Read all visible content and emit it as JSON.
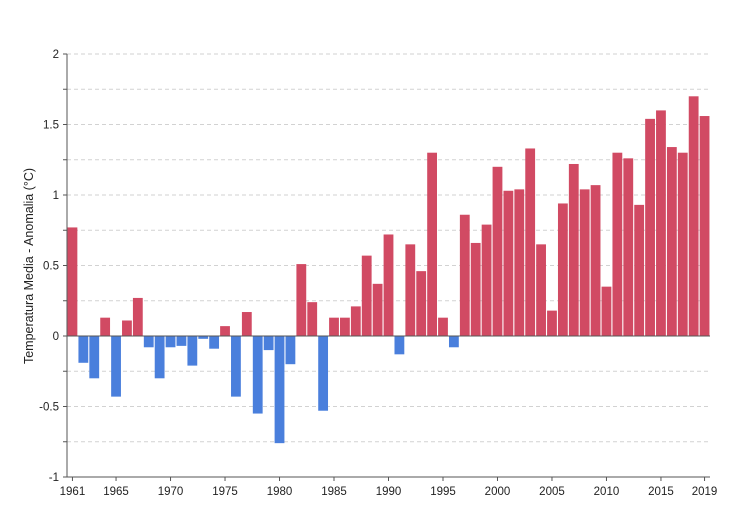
{
  "chart_data": {
    "type": "bar",
    "title": "",
    "xlabel": "",
    "ylabel": "Temperatura Media - Anomalia (°C)",
    "ylim": [
      -1,
      2
    ],
    "grid": "horizontal dashed",
    "legend": "none",
    "colors": {
      "positive": "#d14a63",
      "negative": "#4a7fdc"
    },
    "y_ticks": [
      {
        "value": 2,
        "label": "2"
      },
      {
        "value": 1.5,
        "label": "1.5"
      },
      {
        "value": 1,
        "label": "1"
      },
      {
        "value": 0.5,
        "label": "0.5"
      },
      {
        "value": 0,
        "label": "0"
      },
      {
        "value": -0.5,
        "label": "-0.5"
      },
      {
        "value": -1,
        "label": "-1"
      }
    ],
    "x_tick_labels": [
      "1961",
      "1965",
      "1970",
      "1975",
      "1980",
      "1985",
      "1990",
      "1995",
      "2000",
      "2005",
      "2010",
      "2015",
      "2019"
    ],
    "categories": [
      1961,
      1962,
      1963,
      1964,
      1965,
      1966,
      1967,
      1968,
      1969,
      1970,
      1971,
      1972,
      1973,
      1974,
      1975,
      1976,
      1977,
      1978,
      1979,
      1980,
      1981,
      1982,
      1983,
      1984,
      1985,
      1986,
      1987,
      1988,
      1989,
      1990,
      1991,
      1992,
      1993,
      1994,
      1995,
      1996,
      1997,
      1998,
      1999,
      2000,
      2001,
      2002,
      2003,
      2004,
      2005,
      2006,
      2007,
      2008,
      2009,
      2010,
      2011,
      2012,
      2013,
      2014,
      2015,
      2016,
      2017,
      2018,
      2019
    ],
    "values": [
      0.77,
      -0.19,
      -0.3,
      0.13,
      -0.43,
      0.11,
      0.27,
      -0.08,
      -0.3,
      -0.08,
      -0.07,
      -0.21,
      -0.02,
      -0.09,
      0.07,
      -0.43,
      0.17,
      -0.55,
      -0.1,
      -0.76,
      -0.2,
      0.51,
      0.24,
      -0.53,
      0.13,
      0.13,
      0.21,
      0.57,
      0.37,
      0.72,
      -0.13,
      0.65,
      0.46,
      1.3,
      0.13,
      -0.08,
      0.86,
      0.66,
      0.79,
      1.2,
      1.03,
      1.04,
      1.33,
      0.65,
      0.18,
      0.94,
      1.22,
      1.04,
      1.07,
      0.35,
      1.3,
      1.26,
      0.93,
      1.54,
      1.6,
      1.34,
      1.3,
      1.7,
      1.56
    ]
  }
}
